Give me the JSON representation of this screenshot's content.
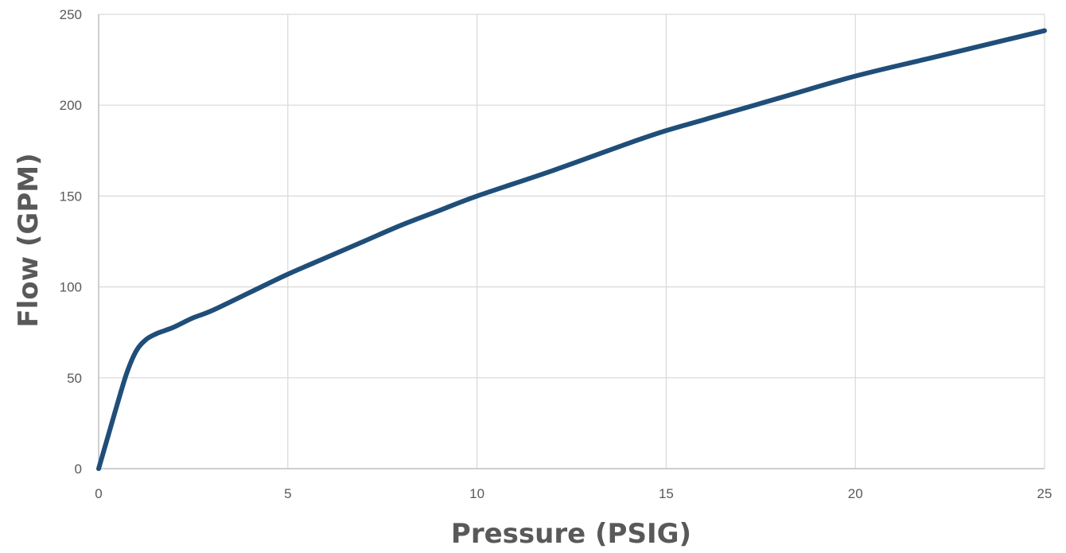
{
  "chart_data": {
    "type": "line",
    "title": "",
    "xlabel": "Pressure (PSIG)",
    "ylabel": "Flow (GPM)",
    "xlim": [
      0,
      25
    ],
    "ylim": [
      0,
      250
    ],
    "x_ticks": [
      "0",
      "5",
      "10",
      "15",
      "20",
      "25"
    ],
    "y_ticks": [
      "0",
      "50",
      "100",
      "150",
      "200",
      "250"
    ],
    "grid": true,
    "legend": "none",
    "line_color": "#1F4E79",
    "grid_color": "#D9D9D9",
    "axis_color": "#BFBFBF",
    "text_color": "#595959",
    "series": [
      {
        "x": [
          0,
          0.25,
          0.5,
          0.75,
          1.0,
          1.25,
          1.5,
          1.75,
          2.0,
          2.5,
          3,
          4,
          5,
          6,
          7,
          8,
          9,
          10,
          12,
          14,
          15,
          16,
          18,
          20,
          22,
          24,
          25
        ],
        "values": [
          0,
          18,
          36,
          53,
          65,
          71,
          74,
          76,
          78,
          83,
          87,
          97,
          107,
          116,
          125,
          134,
          142,
          150,
          164,
          179,
          186,
          192,
          204,
          216,
          226,
          236,
          241
        ]
      }
    ]
  }
}
